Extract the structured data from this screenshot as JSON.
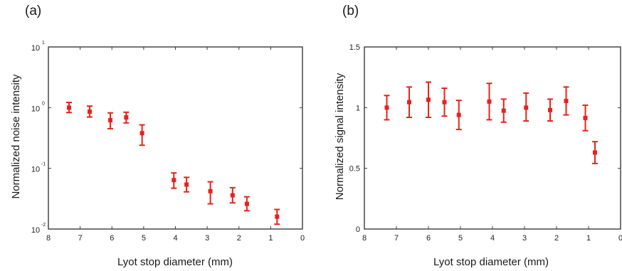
{
  "chart_data": [
    {
      "type": "scatter",
      "panel_label": "(a)",
      "xlabel": "Lyot stop diameter (mm)",
      "ylabel": "Normalized noise intensity",
      "xlim": [
        8,
        0
      ],
      "x_reversed": true,
      "ylim": [
        0.01,
        10
      ],
      "yscale": "log",
      "xticks": [
        "8",
        "7",
        "6",
        "5",
        "4",
        "3",
        "2",
        "1",
        "0"
      ],
      "yticks": [
        {
          "base": "10",
          "exp": "1"
        },
        {
          "base": "10",
          "exp": "0"
        },
        {
          "base": "10",
          "exp": "-1"
        },
        {
          "base": "10",
          "exp": "-2"
        }
      ],
      "grid": false,
      "series": [
        {
          "color": "#e8221b",
          "marker": "square",
          "points": [
            {
              "x": 7.35,
              "y": 1.0,
              "low": 0.83,
              "high": 1.22
            },
            {
              "x": 6.7,
              "y": 0.86,
              "low": 0.7,
              "high": 1.06
            },
            {
              "x": 6.05,
              "y": 0.62,
              "low": 0.45,
              "high": 0.82
            },
            {
              "x": 5.55,
              "y": 0.69,
              "low": 0.56,
              "high": 0.84
            },
            {
              "x": 5.05,
              "y": 0.38,
              "low": 0.24,
              "high": 0.52
            },
            {
              "x": 4.05,
              "y": 0.064,
              "low": 0.047,
              "high": 0.084
            },
            {
              "x": 3.65,
              "y": 0.054,
              "low": 0.041,
              "high": 0.071
            },
            {
              "x": 2.9,
              "y": 0.042,
              "low": 0.026,
              "high": 0.06
            },
            {
              "x": 2.2,
              "y": 0.036,
              "low": 0.027,
              "high": 0.048
            },
            {
              "x": 1.75,
              "y": 0.026,
              "low": 0.02,
              "high": 0.034
            },
            {
              "x": 0.8,
              "y": 0.016,
              "low": 0.012,
              "high": 0.021
            }
          ]
        }
      ]
    },
    {
      "type": "scatter",
      "panel_label": "(b)",
      "xlabel": "Lyot stop diameter (mm)",
      "ylabel": "Normalized signal intensity",
      "xlim": [
        8,
        0
      ],
      "x_reversed": true,
      "ylim": [
        0,
        1.5
      ],
      "yscale": "linear",
      "xticks": [
        "8",
        "7",
        "6",
        "5",
        "4",
        "3",
        "2",
        "1",
        "0"
      ],
      "yticks": [
        "0",
        "0.5",
        "1",
        "1.5"
      ],
      "grid": false,
      "series": [
        {
          "color": "#e8221b",
          "marker": "square",
          "points": [
            {
              "x": 7.3,
              "y": 1.0,
              "low": 0.9,
              "high": 1.1
            },
            {
              "x": 6.6,
              "y": 1.045,
              "low": 0.92,
              "high": 1.17
            },
            {
              "x": 6.0,
              "y": 1.065,
              "low": 0.92,
              "high": 1.21
            },
            {
              "x": 5.5,
              "y": 1.045,
              "low": 0.93,
              "high": 1.16
            },
            {
              "x": 5.05,
              "y": 0.94,
              "low": 0.82,
              "high": 1.06
            },
            {
              "x": 4.1,
              "y": 1.05,
              "low": 0.9,
              "high": 1.2
            },
            {
              "x": 3.65,
              "y": 0.975,
              "low": 0.88,
              "high": 1.07
            },
            {
              "x": 2.95,
              "y": 1.0,
              "low": 0.89,
              "high": 1.12
            },
            {
              "x": 2.2,
              "y": 0.98,
              "low": 0.89,
              "high": 1.07
            },
            {
              "x": 1.7,
              "y": 1.055,
              "low": 0.94,
              "high": 1.17
            },
            {
              "x": 1.1,
              "y": 0.915,
              "low": 0.81,
              "high": 1.02
            },
            {
              "x": 0.8,
              "y": 0.63,
              "low": 0.54,
              "high": 0.72
            }
          ]
        }
      ]
    }
  ]
}
